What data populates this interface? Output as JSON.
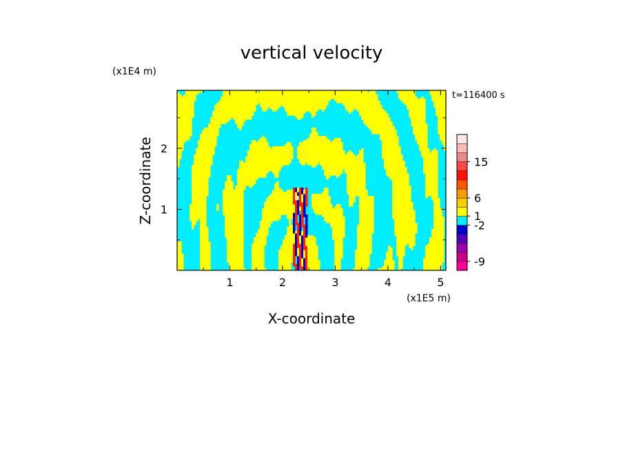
{
  "chart_data": {
    "type": "heatmap",
    "title": "vertical velocity",
    "xlabel": "X-coordinate",
    "ylabel": "Z-coordinate",
    "x_scale_label": "(x1E5 m)",
    "y_scale_label": "(x1E4 m)",
    "time_label": "t=116400 s",
    "xlim": [
      0,
      5.1
    ],
    "ylim": [
      0,
      2.95
    ],
    "x_ticks": [
      1,
      2,
      3,
      4,
      5
    ],
    "y_ticks": [
      1,
      2
    ],
    "colorbar": {
      "tick_labels": [
        "15",
        "6",
        "1",
        "-2",
        "-9"
      ],
      "colors": [
        "#ff0099",
        "#cc0088",
        "#9900aa",
        "#5500bb",
        "#0000cc",
        "#00eeff",
        "#ffff00",
        "#ffcc00",
        "#ff9900",
        "#ff5500",
        "#ff1100",
        "#ff4444",
        "#ee8888",
        "#ffbbbb",
        "#ffe6e6"
      ]
    },
    "fill_colors": {
      "positive": "#ffff00",
      "negative": "#00eeff",
      "strong_positive": "#ff2200",
      "strong_negative": "#0000cc",
      "peak": "#ffffff"
    }
  }
}
